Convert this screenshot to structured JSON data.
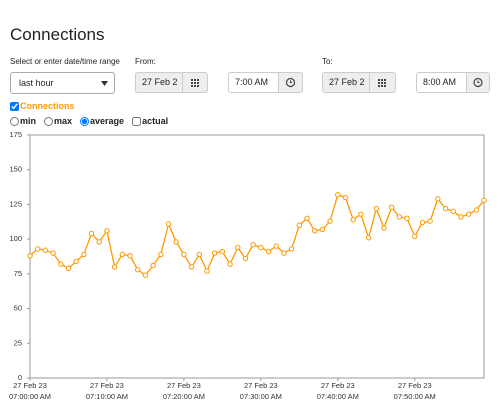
{
  "page_title": "Connections",
  "range": {
    "label": "Select or enter date/time range",
    "value": "last hour"
  },
  "from": {
    "label": "From:",
    "date": "27 Feb 2",
    "time": "7:00 AM"
  },
  "to": {
    "label": "To:",
    "date": "27 Feb 2",
    "time": "8:00 AM"
  },
  "aggregation": {
    "options": [
      "min",
      "max",
      "average"
    ],
    "selected": "average"
  },
  "actual": {
    "label": "actual",
    "checked": false
  },
  "chart_data": {
    "type": "line",
    "x": [
      0,
      1,
      2,
      3,
      4,
      5,
      6,
      7,
      8,
      9,
      10,
      11,
      12,
      13,
      14,
      15,
      16,
      17,
      18,
      19,
      20,
      21,
      22,
      23,
      24,
      25,
      26,
      27,
      28,
      29,
      30,
      31,
      32,
      33,
      34,
      35,
      36,
      37,
      38,
      39,
      40,
      41,
      42,
      43,
      44,
      45,
      46,
      47,
      48,
      49,
      50,
      51,
      52,
      53,
      54,
      55,
      56,
      57,
      58,
      59
    ],
    "series": [
      {
        "name": "Connections",
        "color": "#ff9900",
        "checked": true,
        "values": [
          88,
          93,
          92,
          90,
          82,
          79,
          84,
          89,
          104,
          98,
          106,
          80,
          89,
          88,
          78,
          74,
          81,
          89,
          111,
          98,
          89,
          80,
          89,
          77,
          90,
          91,
          82,
          94,
          86,
          96,
          94,
          91,
          95,
          90,
          93,
          110,
          115,
          106,
          107,
          113,
          132,
          130,
          114,
          118,
          101,
          122,
          108,
          123,
          116,
          115,
          102,
          112,
          113,
          129,
          122,
          120,
          116,
          118,
          121,
          128
        ]
      }
    ],
    "xlim": [
      0,
      59
    ],
    "xticks": [
      {
        "value": 0,
        "label": [
          "27 Feb 23",
          "07:00:00 AM"
        ]
      },
      {
        "value": 10,
        "label": [
          "27 Feb 23",
          "07:10:00 AM"
        ]
      },
      {
        "value": 20,
        "label": [
          "27 Feb 23",
          "07:20:00 AM"
        ]
      },
      {
        "value": 30,
        "label": [
          "27 Feb 23",
          "07:30:00 AM"
        ]
      },
      {
        "value": 40,
        "label": [
          "27 Feb 23",
          "07:40:00 AM"
        ]
      },
      {
        "value": 50,
        "label": [
          "27 Feb 23",
          "07:50:00 AM"
        ]
      }
    ],
    "ylim": [
      0,
      175
    ],
    "yticks": [
      0,
      25,
      50,
      75,
      100,
      125,
      150,
      175
    ],
    "grid": false
  }
}
